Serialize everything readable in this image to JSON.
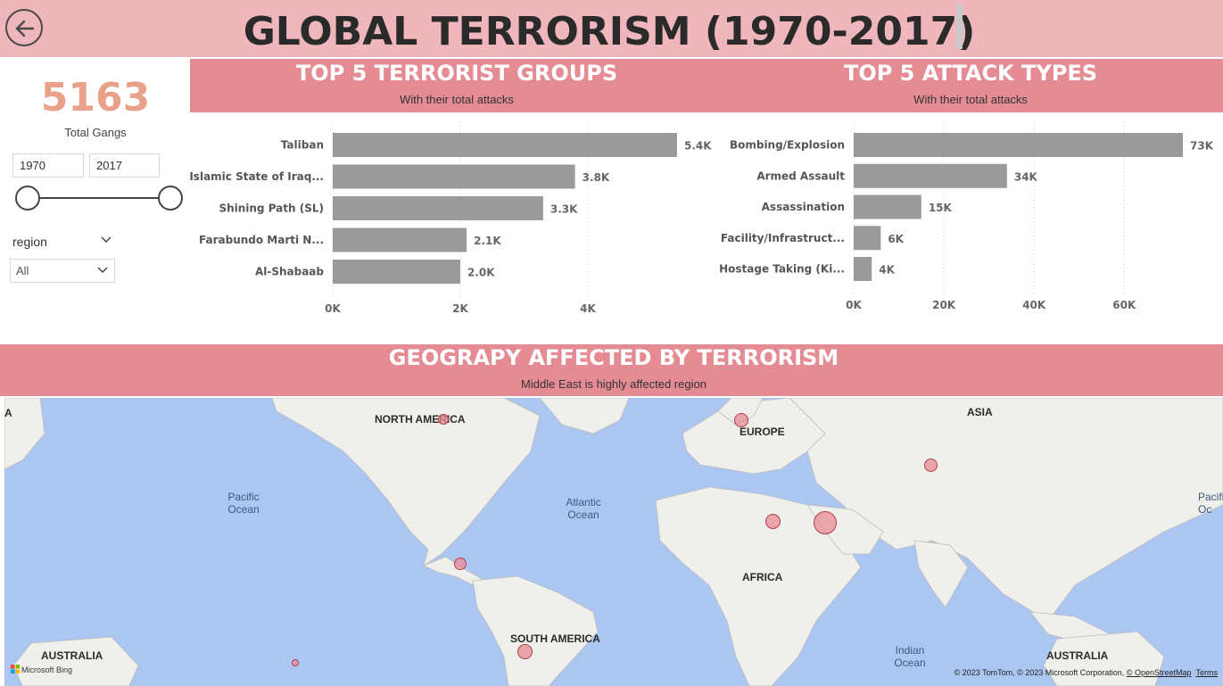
{
  "header": {
    "title": "GLOBAL TERRORISM (1970-2017)",
    "back_icon": "back-arrow-icon"
  },
  "kpi": {
    "value": "5163",
    "label": "Total Gangs",
    "color": "#e9a189"
  },
  "filters": {
    "year_start": "1970",
    "year_end": "2017",
    "range_selected": [
      1970,
      2017
    ],
    "region_label": "region",
    "region_value": "All"
  },
  "groups_panel": {
    "title": "TOP 5 TERRORIST GROUPS",
    "subtitle": "With their total attacks"
  },
  "attacks_panel": {
    "title": "TOP 5 ATTACK TYPES",
    "subtitle": "With their total attacks"
  },
  "geo": {
    "title": "GEOGRAPY AFFECTED BY TERRORISM",
    "subtitle": "Middle East is highly affected region",
    "continents": [
      "NORTH AMERICA",
      "EUROPE",
      "ASIA",
      "AFRICA",
      "SOUTH AMERICA",
      "AUSTRALIA",
      "AUSTRALIA"
    ],
    "oceans": [
      "Pacific Ocean",
      "Atlantic Ocean",
      "Indian Ocean"
    ],
    "edge_labels": [
      "A",
      "Pacific Oc"
    ],
    "bing_label": "Microsoft Bing",
    "copyright": "© 2023 TomTom, © 2023 Microsoft Corporation, ",
    "osm_link": "© OpenStreetMap",
    "terms_link": "Terms"
  },
  "colors": {
    "header_bg": "#efb6bb",
    "panel_bg": "#e58b93",
    "bar": "#9a9a9a",
    "map_water": "#abc6f1",
    "bubble": "#e88c96"
  },
  "chart_data": [
    {
      "type": "bar",
      "orientation": "horizontal",
      "categories": [
        "Taliban",
        "Islamic State of Iraq...",
        "Shining Path (SL)",
        "Farabundo Marti N...",
        "Al-Shabaab"
      ],
      "values": [
        5400,
        3800,
        3300,
        2100,
        2000
      ],
      "data_labels": [
        "5.4K",
        "3.8K",
        "3.3K",
        "2.1K",
        "2.0K"
      ],
      "x_ticks": [
        0,
        2000,
        4000
      ],
      "x_tick_labels": [
        "0K",
        "2K",
        "4K"
      ],
      "xlim": [
        0,
        5400
      ],
      "grid": true
    },
    {
      "type": "bar",
      "orientation": "horizontal",
      "categories": [
        "Bombing/Explosion",
        "Armed Assault",
        "Assassination",
        "Facility/Infrastruct...",
        "Hostage Taking (Ki..."
      ],
      "values": [
        73000,
        34000,
        15000,
        6000,
        4000
      ],
      "data_labels": [
        "73K",
        "34K",
        "15K",
        "6K",
        "4K"
      ],
      "x_ticks": [
        0,
        20000,
        40000,
        60000
      ],
      "x_tick_labels": [
        "0K",
        "20K",
        "40K",
        "60K"
      ],
      "xlim": [
        0,
        73000
      ],
      "grid": true
    }
  ]
}
